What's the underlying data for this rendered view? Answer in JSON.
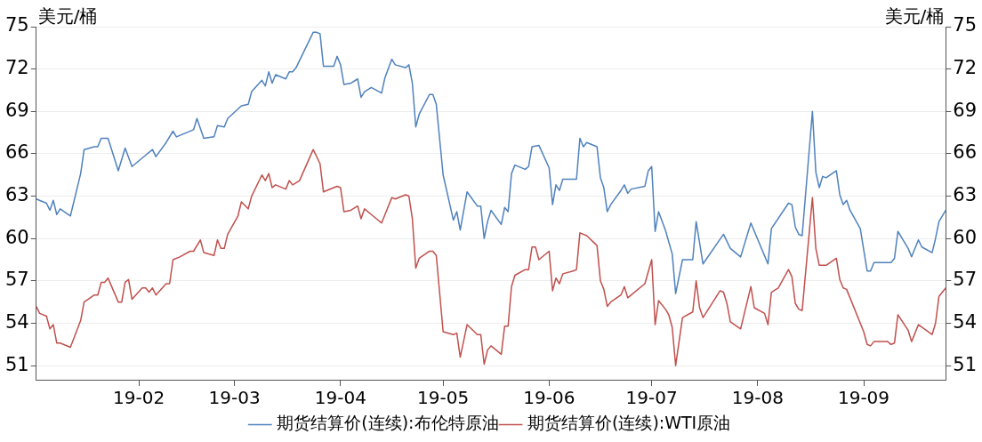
{
  "chart_data": {
    "type": "line",
    "ylabel": "美元/桶",
    "y2label": "美元/桶",
    "xlim": [
      "--01-02",
      "--09-25"
    ],
    "xticks": [
      {
        "value": "--02-01",
        "label": "19-02"
      },
      {
        "value": "--03-01",
        "label": "19-03"
      },
      {
        "value": "--04-01",
        "label": "19-04"
      },
      {
        "value": "--05-01",
        "label": "19-05"
      },
      {
        "value": "--06-01",
        "label": "19-06"
      },
      {
        "value": "--07-01",
        "label": "19-07"
      },
      {
        "value": "--08-01",
        "label": "19-08"
      },
      {
        "value": "--09-01",
        "label": "19-09"
      }
    ],
    "ylim": [
      50,
      75
    ],
    "yticks": [
      51,
      54,
      57,
      60,
      63,
      66,
      69,
      72,
      75
    ],
    "y2lim": [
      50,
      75
    ],
    "y2ticks": [
      51,
      54,
      57,
      60,
      63,
      66,
      69,
      72,
      75
    ],
    "grid": "y",
    "legend": "bottom",
    "marker": "none",
    "series": [
      {
        "name": "期货结算价(连续):布伦特原油",
        "color": "#4f81bd",
        "x": [
          "--01-02",
          "--01-05",
          "--01-06",
          "--01-07",
          "--01-08",
          "--01-09",
          "--01-12",
          "--01-15",
          "--01-16",
          "--01-19",
          "--01-20",
          "--01-21",
          "--01-23",
          "--01-26",
          "--01-28",
          "--01-30",
          "--02-03",
          "--02-05",
          "--02-06",
          "--02-09",
          "--02-11",
          "--02-12",
          "--02-17",
          "--02-18",
          "--02-20",
          "--02-23",
          "--02-24",
          "--02-26",
          "--02-27",
          "--03-03",
          "--03-05",
          "--03-06",
          "--03-09",
          "--03-10",
          "--03-11",
          "--03-12",
          "--03-13",
          "--03-16",
          "--03-17",
          "--03-18",
          "--03-19",
          "--03-24",
          "--03-25",
          "--03-26",
          "--03-27",
          "--03-30",
          "--03-31",
          "--04-01",
          "--04-02",
          "--04-04",
          "--04-06",
          "--04-07",
          "--04-08",
          "--04-10",
          "--04-13",
          "--04-14",
          "--04-16",
          "--04-17",
          "--04-20",
          "--04-21",
          "--04-22",
          "--04-23",
          "--04-24",
          "--04-27",
          "--04-28",
          "--04-29",
          "--05-01",
          "--05-04",
          "--05-05",
          "--05-06",
          "--05-08",
          "--05-11",
          "--05-12",
          "--05-13",
          "--05-14",
          "--05-15",
          "--05-18",
          "--05-19",
          "--05-20",
          "--05-21",
          "--05-22",
          "--05-25",
          "--05-26",
          "--05-27",
          "--05-29",
          "--06-01",
          "--06-02",
          "--06-03",
          "--06-04",
          "--06-05",
          "--06-09",
          "--06-10",
          "--06-11",
          "--06-12",
          "--06-15",
          "--06-16",
          "--06-17",
          "--06-18",
          "--06-19",
          "--06-22",
          "--06-23",
          "--06-24",
          "--06-25",
          "--06-29",
          "--06-30",
          "--07-01",
          "--07-02",
          "--07-03",
          "--07-05",
          "--07-07",
          "--07-08",
          "--07-10",
          "--07-13",
          "--07-14",
          "--07-16",
          "--07-22",
          "--07-24",
          "--07-27",
          "--07-30",
          "--08-04",
          "--08-05",
          "--08-10",
          "--08-11",
          "--08-12",
          "--08-13",
          "--08-14",
          "--08-17",
          "--08-18",
          "--08-19",
          "--08-20",
          "--08-21",
          "--08-24",
          "--08-25",
          "--08-26",
          "--08-27",
          "--08-28",
          "--08-31",
          "--09-02",
          "--09-03",
          "--09-04",
          "--09-08",
          "--09-09",
          "--09-10",
          "--09-11",
          "--09-14",
          "--09-15",
          "--09-17",
          "--09-18",
          "--09-21",
          "--09-22",
          "--09-23",
          "--09-25"
        ],
        "values": [
          62.8,
          62.5,
          62.0,
          62.7,
          61.7,
          62.1,
          61.6,
          64.6,
          66.3,
          66.5,
          66.5,
          67.1,
          67.1,
          64.8,
          66.4,
          65.1,
          65.9,
          66.3,
          65.8,
          66.8,
          67.6,
          67.2,
          67.7,
          68.5,
          67.1,
          67.2,
          68.0,
          67.9,
          68.5,
          69.4,
          69.5,
          70.4,
          71.2,
          70.8,
          71.8,
          71.0,
          71.6,
          71.3,
          71.8,
          71.8,
          72.1,
          74.6,
          74.6,
          74.5,
          72.2,
          72.2,
          72.9,
          72.3,
          70.9,
          71.0,
          71.3,
          70.0,
          70.4,
          70.7,
          70.3,
          71.4,
          72.7,
          72.3,
          72.1,
          72.3,
          71.0,
          67.9,
          68.8,
          70.2,
          70.2,
          69.5,
          64.5,
          61.3,
          61.9,
          60.6,
          63.3,
          62.3,
          62.3,
          60.0,
          61.2,
          62.0,
          61.0,
          62.2,
          61.9,
          64.6,
          65.2,
          64.9,
          65.1,
          66.5,
          66.6,
          65.0,
          62.4,
          63.8,
          63.4,
          64.2,
          64.2,
          67.1,
          66.5,
          66.8,
          66.5,
          64.3,
          63.6,
          61.9,
          62.4,
          63.4,
          63.8,
          63.2,
          63.5,
          63.7,
          64.8,
          65.1,
          60.5,
          61.9,
          60.6,
          58.9,
          56.1,
          58.5,
          58.5,
          61.2,
          58.2,
          60.3,
          59.3,
          58.7,
          61.1,
          58.2,
          60.7,
          62.5,
          62.4,
          60.8,
          60.3,
          60.2,
          69.0,
          64.7,
          63.6,
          64.4,
          64.3,
          64.8,
          63.1,
          62.4,
          62.7,
          62.0,
          60.7,
          57.7,
          57.7,
          58.3,
          58.3,
          58.3,
          58.6,
          60.5,
          59.3,
          58.7,
          59.9,
          59.4,
          59.0,
          60.0,
          61.2,
          62.0
        ]
      },
      {
        "name": "期货结算价(连续):WTI原油",
        "color": "#c0504d",
        "x": [
          "--01-02",
          "--01-03",
          "--01-05",
          "--01-06",
          "--01-07",
          "--01-08",
          "--01-09",
          "--01-12",
          "--01-15",
          "--01-16",
          "--01-19",
          "--01-20",
          "--01-21",
          "--01-22",
          "--01-23",
          "--01-26",
          "--01-27",
          "--01-28",
          "--01-29",
          "--01-30",
          "--02-02",
          "--02-03",
          "--02-04",
          "--02-05",
          "--02-06",
          "--02-09",
          "--02-10",
          "--02-11",
          "--02-13",
          "--02-16",
          "--02-17",
          "--02-19",
          "--02-20",
          "--02-23",
          "--02-24",
          "--02-25",
          "--02-26",
          "--02-27",
          "--03-02",
          "--03-03",
          "--03-05",
          "--03-06",
          "--03-09",
          "--03-10",
          "--03-11",
          "--03-12",
          "--03-13",
          "--03-16",
          "--03-17",
          "--03-18",
          "--03-20",
          "--03-24",
          "--03-26",
          "--03-27",
          "--03-30",
          "--03-31",
          "--04-01",
          "--04-02",
          "--04-04",
          "--04-06",
          "--04-07",
          "--04-08",
          "--04-10",
          "--04-13",
          "--04-14",
          "--04-16",
          "--04-17",
          "--04-20",
          "--04-21",
          "--04-22",
          "--04-23",
          "--04-24",
          "--04-27",
          "--04-28",
          "--04-29",
          "--05-01",
          "--05-04",
          "--05-05",
          "--05-06",
          "--05-08",
          "--05-11",
          "--05-12",
          "--05-13",
          "--05-14",
          "--05-15",
          "--05-18",
          "--05-19",
          "--05-20",
          "--05-21",
          "--05-22",
          "--05-25",
          "--05-26",
          "--05-27",
          "--05-28",
          "--05-29",
          "--06-01",
          "--06-02",
          "--06-03",
          "--06-04",
          "--06-05",
          "--06-08",
          "--06-09",
          "--06-10",
          "--06-12",
          "--06-15",
          "--06-16",
          "--06-17",
          "--06-18",
          "--06-19",
          "--06-22",
          "--06-23",
          "--06-24",
          "--06-29",
          "--07-01",
          "--07-02",
          "--07-03",
          "--07-05",
          "--07-06",
          "--07-07",
          "--07-08",
          "--07-10",
          "--07-13",
          "--07-14",
          "--07-15",
          "--07-16",
          "--07-21",
          "--07-22",
          "--07-23",
          "--07-24",
          "--07-27",
          "--07-30",
          "--07-31",
          "--08-03",
          "--08-04",
          "--08-05",
          "--08-07",
          "--08-10",
          "--08-11",
          "--08-12",
          "--08-13",
          "--08-14",
          "--08-17",
          "--08-18",
          "--08-19",
          "--08-21",
          "--08-24",
          "--08-25",
          "--08-26",
          "--08-27",
          "--09-01",
          "--09-02",
          "--09-03",
          "--09-04",
          "--09-08",
          "--09-09",
          "--09-10",
          "--09-11",
          "--09-14",
          "--09-15",
          "--09-17",
          "--09-21",
          "--09-22",
          "--09-23",
          "--09-25"
        ],
        "values": [
          55.2,
          54.7,
          54.5,
          53.6,
          53.9,
          52.6,
          52.6,
          52.3,
          54.2,
          55.5,
          56.0,
          56.0,
          56.9,
          56.9,
          57.2,
          55.5,
          55.5,
          56.9,
          57.1,
          55.7,
          56.5,
          56.5,
          56.2,
          56.5,
          56.0,
          56.8,
          56.8,
          58.5,
          58.7,
          59.1,
          59.1,
          59.9,
          59.0,
          58.8,
          59.9,
          59.3,
          59.3,
          60.3,
          61.6,
          62.6,
          62.1,
          63.0,
          64.5,
          64.1,
          64.6,
          63.6,
          63.8,
          63.5,
          64.1,
          63.8,
          64.1,
          66.3,
          65.3,
          63.3,
          63.6,
          63.7,
          63.6,
          61.9,
          62.0,
          62.3,
          61.4,
          62.1,
          61.7,
          61.1,
          61.7,
          62.9,
          62.8,
          63.1,
          63.0,
          61.4,
          57.9,
          58.6,
          59.1,
          59.1,
          58.8,
          53.4,
          53.2,
          53.3,
          51.6,
          53.9,
          53.2,
          53.2,
          51.1,
          52.1,
          52.4,
          51.8,
          53.8,
          53.8,
          56.6,
          57.4,
          57.8,
          57.8,
          59.4,
          59.4,
          58.5,
          59.1,
          56.3,
          57.2,
          56.8,
          57.5,
          57.7,
          57.8,
          60.4,
          60.2,
          59.5,
          57.0,
          56.4,
          55.2,
          55.5,
          56.0,
          56.6,
          55.8,
          56.8,
          58.5,
          53.9,
          55.6,
          55.0,
          54.6,
          53.7,
          51.0,
          54.4,
          54.8,
          57.0,
          55.1,
          54.4,
          56.3,
          56.2,
          55.4,
          54.1,
          53.6,
          56.6,
          55.1,
          54.7,
          53.9,
          56.2,
          56.5,
          57.8,
          57.3,
          55.4,
          55.0,
          54.9,
          62.9,
          59.3,
          58.1,
          58.1,
          58.6,
          57.1,
          56.5,
          56.4,
          53.4,
          52.5,
          52.4,
          52.7,
          52.7,
          52.5,
          52.6,
          54.6,
          53.5,
          52.7,
          53.9,
          53.2,
          54.0,
          55.9,
          56.5
        ]
      }
    ]
  }
}
